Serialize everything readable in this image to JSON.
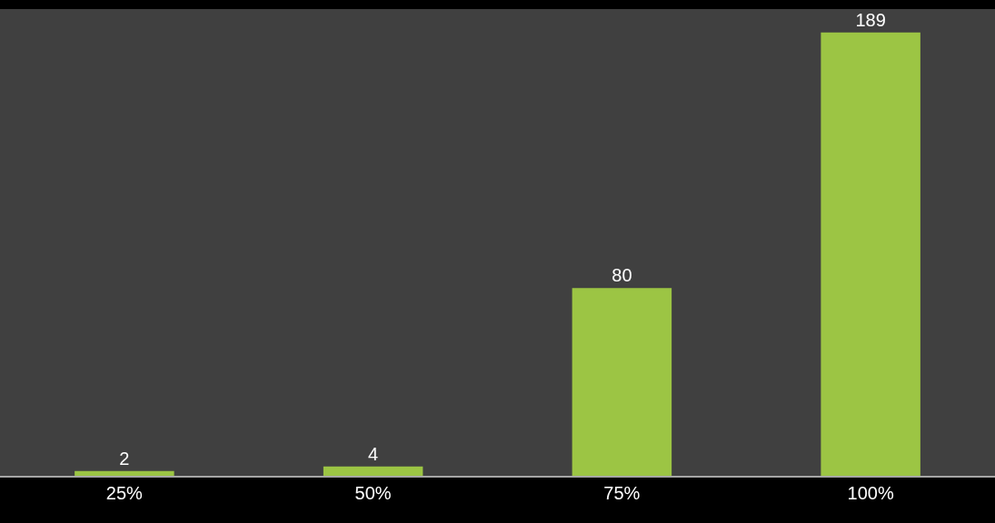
{
  "chart_data": {
    "type": "bar",
    "categories": [
      "25%",
      "50%",
      "75%",
      "100%"
    ],
    "values": [
      2,
      4,
      80,
      189
    ],
    "color": "#9cc544",
    "data_labels": true
  }
}
